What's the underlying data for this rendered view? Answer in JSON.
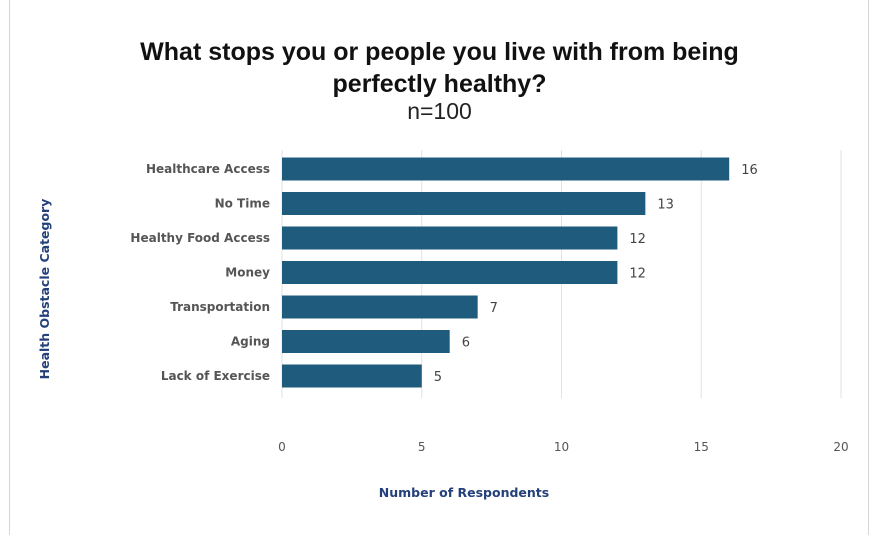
{
  "chart_data": {
    "type": "bar",
    "orientation": "horizontal",
    "title": "What stops you or people you live with from being perfectly healthy?",
    "subtitle": "n=100",
    "xlabel": "Number of Respondents",
    "ylabel": "Health Obstacle Category",
    "categories": [
      "Healthcare Access",
      "No Time",
      "Healthy Food Access",
      "Money",
      "Transportation",
      "Aging",
      "Lack of Exercise"
    ],
    "values": [
      16,
      13,
      12,
      12,
      7,
      6,
      5
    ],
    "xlim": [
      0,
      20
    ],
    "xticks": [
      "0",
      "5",
      "10",
      "15",
      "20"
    ],
    "grid": "vertical",
    "bar_color": "#1e5b7d",
    "axis_label_color": "#24407a"
  }
}
